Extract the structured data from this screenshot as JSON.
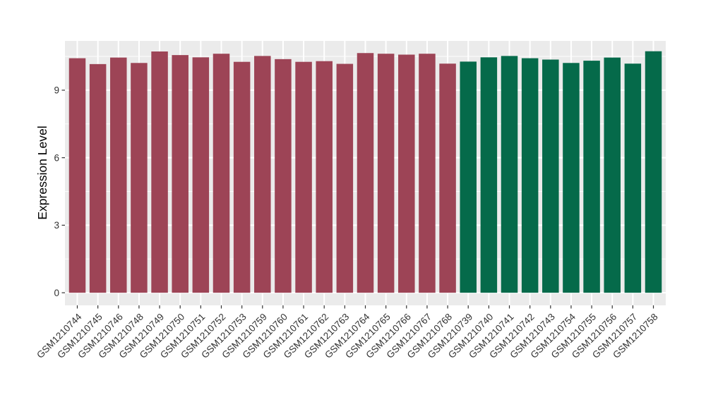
{
  "chart_data": {
    "type": "bar",
    "title": "",
    "xlabel": "",
    "ylabel": "Expression Level",
    "ylim": [
      -0.56,
      11.19
    ],
    "yticks": [
      0,
      3,
      6,
      9
    ],
    "yticks_minor": [
      1.5,
      4.5,
      7.5,
      10.5
    ],
    "grid": true,
    "legend_position": "none",
    "panel_bg_color": "#EBEBEB",
    "grid_color": "#FFFFFF",
    "axis_text_color": "#333333",
    "axis_title_color": "#000000",
    "tick_mark_color": "#333333",
    "group_colors": {
      "red": "#9D4456",
      "green": "#056A4A"
    },
    "bars": [
      {
        "label": "GSM1210744",
        "value": 10.42,
        "group": "red"
      },
      {
        "label": "GSM1210745",
        "value": 10.16,
        "group": "red"
      },
      {
        "label": "GSM1210746",
        "value": 10.45,
        "group": "red"
      },
      {
        "label": "GSM1210748",
        "value": 10.21,
        "group": "red"
      },
      {
        "label": "GSM1210749",
        "value": 10.72,
        "group": "red"
      },
      {
        "label": "GSM1210750",
        "value": 10.56,
        "group": "red"
      },
      {
        "label": "GSM1210751",
        "value": 10.46,
        "group": "red"
      },
      {
        "label": "GSM1210752",
        "value": 10.62,
        "group": "red"
      },
      {
        "label": "GSM1210753",
        "value": 10.26,
        "group": "red"
      },
      {
        "label": "GSM1210759",
        "value": 10.52,
        "group": "red"
      },
      {
        "label": "GSM1210760",
        "value": 10.38,
        "group": "red"
      },
      {
        "label": "GSM1210761",
        "value": 10.26,
        "group": "red"
      },
      {
        "label": "GSM1210762",
        "value": 10.29,
        "group": "red"
      },
      {
        "label": "GSM1210763",
        "value": 10.17,
        "group": "red"
      },
      {
        "label": "GSM1210764",
        "value": 10.65,
        "group": "red"
      },
      {
        "label": "GSM1210765",
        "value": 10.62,
        "group": "red"
      },
      {
        "label": "GSM1210766",
        "value": 10.58,
        "group": "red"
      },
      {
        "label": "GSM1210767",
        "value": 10.62,
        "group": "red"
      },
      {
        "label": "GSM1210768",
        "value": 10.18,
        "group": "red"
      },
      {
        "label": "GSM1210739",
        "value": 10.27,
        "group": "green"
      },
      {
        "label": "GSM1210740",
        "value": 10.46,
        "group": "green"
      },
      {
        "label": "GSM1210741",
        "value": 10.52,
        "group": "green"
      },
      {
        "label": "GSM1210742",
        "value": 10.42,
        "group": "green"
      },
      {
        "label": "GSM1210743",
        "value": 10.36,
        "group": "green"
      },
      {
        "label": "GSM1210754",
        "value": 10.21,
        "group": "green"
      },
      {
        "label": "GSM1210755",
        "value": 10.31,
        "group": "green"
      },
      {
        "label": "GSM1210756",
        "value": 10.45,
        "group": "green"
      },
      {
        "label": "GSM1210757",
        "value": 10.18,
        "group": "green"
      },
      {
        "label": "GSM1210758",
        "value": 10.73,
        "group": "green"
      }
    ]
  }
}
